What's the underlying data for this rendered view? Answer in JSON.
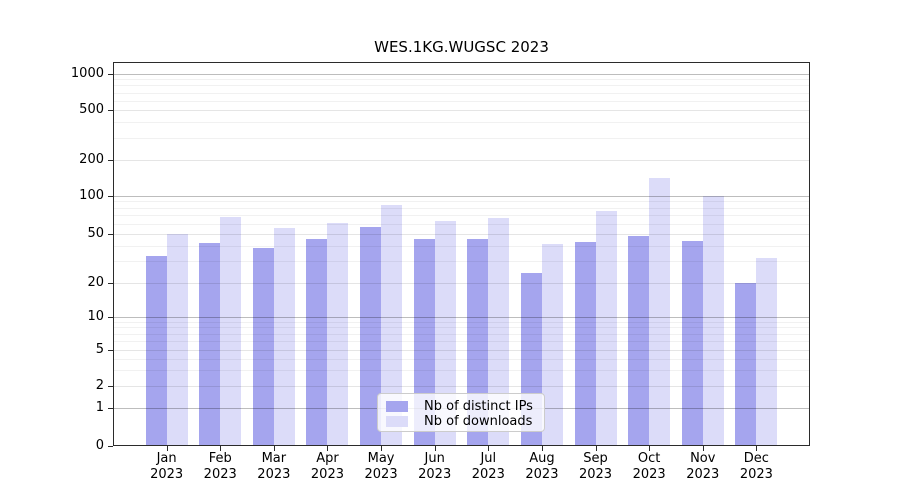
{
  "chart_data": {
    "type": "bar",
    "title": "WES.1KG.WUGSC 2023",
    "categories": [
      "Jan",
      "Feb",
      "Mar",
      "Apr",
      "May",
      "Jun",
      "Jul",
      "Aug",
      "Sep",
      "Oct",
      "Nov",
      "Dec"
    ],
    "category_year": "2023",
    "series": [
      {
        "name": "Nb of distinct IPs",
        "color": "#a5a5ee",
        "values": [
          33,
          42,
          38,
          45,
          56,
          45,
          45,
          24,
          43,
          48,
          44,
          20
        ]
      },
      {
        "name": "Nb of downloads",
        "color": "#dcdcf9",
        "values": [
          50,
          68,
          55,
          61,
          85,
          63,
          67,
          41,
          76,
          140,
          100,
          32
        ]
      }
    ],
    "yscale": "symlog",
    "yticks": [
      0,
      1,
      2,
      5,
      10,
      20,
      50,
      100,
      200,
      500,
      1000
    ],
    "ylim": [
      0,
      1000
    ],
    "xlabel": "",
    "ylabel": "",
    "grid": "both",
    "legend_position": "lower-center"
  }
}
